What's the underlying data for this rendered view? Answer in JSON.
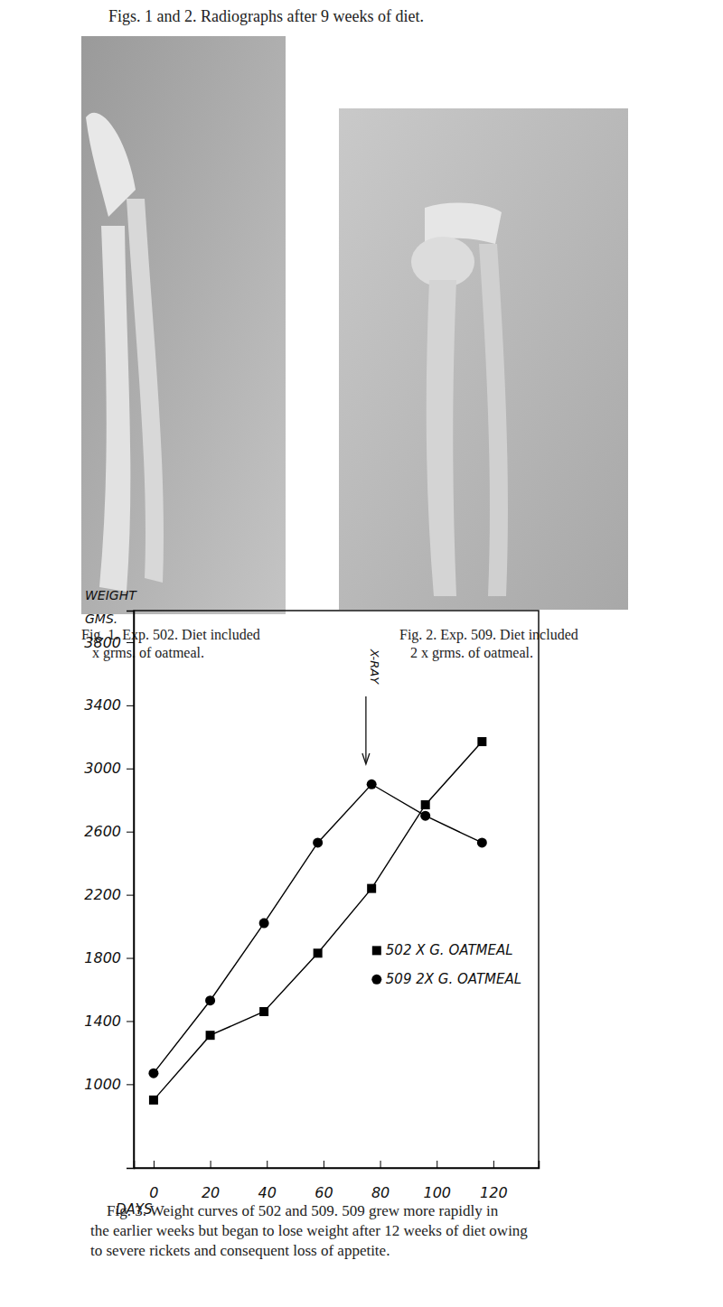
{
  "header": "Figs. 1 and 2. Radiographs after 9 weeks of diet.",
  "figures": [
    {
      "caption": [
        "Fig. 1. Exp. 502. Diet included",
        "x grms. of oatmeal."
      ]
    },
    {
      "caption": [
        "Fig. 2. Exp. 509. Diet included",
        "2 x grms. of oatmeal."
      ]
    }
  ],
  "chart_data": {
    "type": "line",
    "y_label": "WEIGHT GMS.",
    "x_label": "DAYS",
    "x": [
      0,
      20,
      39,
      58,
      77,
      96,
      116
    ],
    "series": [
      {
        "name": "502 X G. OATMEAL",
        "color": "#000000",
        "marker": "square",
        "values": [
          900,
          1310,
          1460,
          1830,
          2240,
          2770,
          3170
        ]
      },
      {
        "name": "509 2X G. OATMEAL",
        "color": "#000000",
        "marker": "circle",
        "values": [
          1070,
          1530,
          2020,
          2530,
          2900,
          2700,
          2530
        ]
      }
    ],
    "xlim": [
      -7,
      136
    ],
    "xticks": [
      0,
      20,
      40,
      60,
      80,
      100,
      120
    ],
    "ylim": [
      470,
      4000
    ],
    "yticks": [
      1000,
      1400,
      1800,
      2200,
      2600,
      3000,
      3400,
      3800
    ],
    "grid": false,
    "legend": "lower right",
    "annotations": [
      {
        "text": "X-RAY",
        "x": 75
      }
    ]
  },
  "caption": [
    "Fig. 3. Weight curves of 502 and 509. 509 grew more rapidly in",
    "the earlier weeks but began to lose weight after 12 weeks of diet owing",
    "to severe rickets and consequent loss of appetite."
  ]
}
